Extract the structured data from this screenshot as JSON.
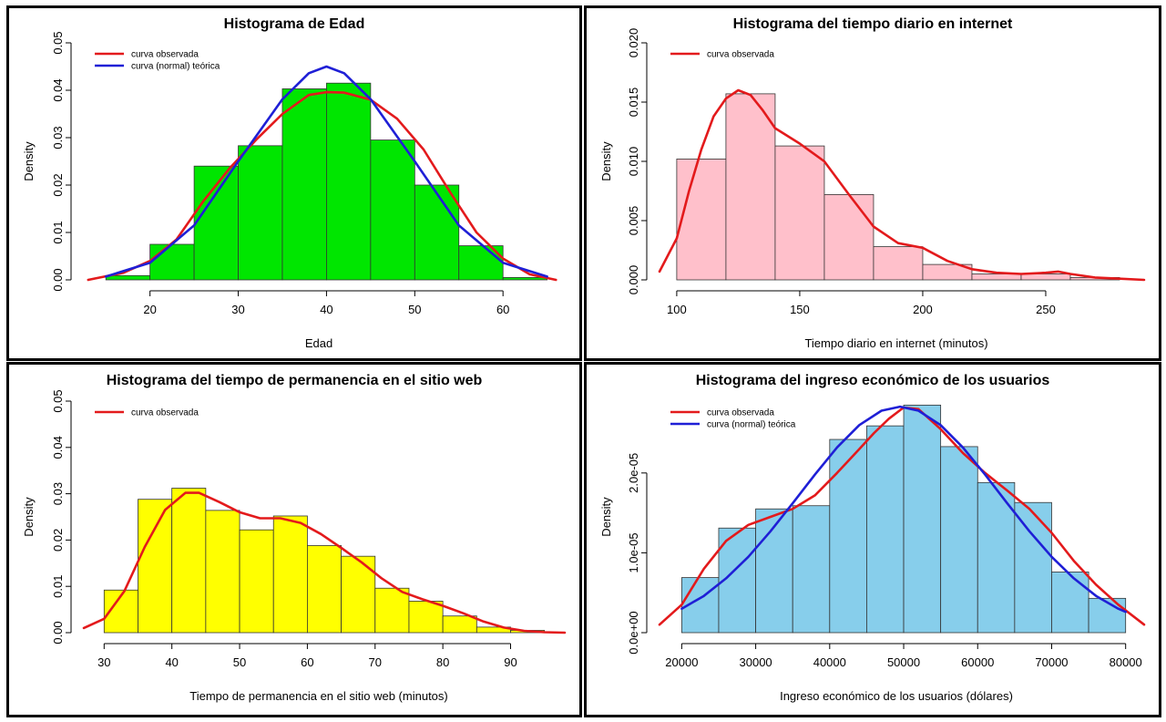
{
  "chart_data": [
    {
      "type": "bar",
      "title": "Histograma de Edad",
      "xlabel": "Edad",
      "ylabel": "Density",
      "bar_color": "#00e600",
      "bins": [
        [
          15,
          20
        ],
        [
          20,
          25
        ],
        [
          25,
          30
        ],
        [
          30,
          35
        ],
        [
          35,
          40
        ],
        [
          40,
          45
        ],
        [
          45,
          50
        ],
        [
          50,
          55
        ],
        [
          55,
          60
        ],
        [
          60,
          65
        ]
      ],
      "values": [
        0.0009,
        0.0075,
        0.024,
        0.0283,
        0.0403,
        0.0415,
        0.0295,
        0.02,
        0.0072,
        0.0005
      ],
      "xlim": [
        12.5,
        67
      ],
      "ylim": [
        0,
        0.05
      ],
      "xticks": [
        20,
        30,
        40,
        50,
        60
      ],
      "xtick_labels": [
        "20",
        "30",
        "40",
        "50",
        "60"
      ],
      "yticks": [
        0,
        0.01,
        0.02,
        0.03,
        0.04,
        0.05
      ],
      "ytick_labels": [
        "0.00",
        "0.01",
        "0.02",
        "0.03",
        "0.04",
        "0.05"
      ],
      "series": [
        {
          "name": "curva observada",
          "color": "#e31a1c",
          "x": [
            13,
            17,
            20,
            23,
            26,
            29,
            32,
            35,
            38,
            40,
            42,
            45,
            48,
            51,
            54,
            57,
            60,
            63,
            66
          ],
          "y": [
            0.0,
            0.0015,
            0.004,
            0.0085,
            0.0165,
            0.0235,
            0.0295,
            0.035,
            0.039,
            0.0396,
            0.0395,
            0.038,
            0.034,
            0.0275,
            0.0185,
            0.01,
            0.0045,
            0.0012,
            0.0
          ]
        },
        {
          "name": "curva (normal) teórica",
          "color": "#1f1fd6",
          "x": [
            15,
            20,
            25,
            30,
            35,
            38,
            40,
            42,
            45,
            50,
            55,
            60,
            65
          ],
          "y": [
            0.0007,
            0.0036,
            0.0115,
            0.025,
            0.0381,
            0.0436,
            0.045,
            0.0436,
            0.0381,
            0.025,
            0.0115,
            0.0036,
            0.0007
          ]
        }
      ]
    },
    {
      "type": "bar",
      "title": "Histograma del tiempo diario en internet",
      "xlabel": "Tiempo diario en internet (minutos)",
      "ylabel": "Density",
      "bar_color": "#ffc0cb",
      "bins": [
        [
          100,
          120
        ],
        [
          120,
          140
        ],
        [
          140,
          160
        ],
        [
          160,
          180
        ],
        [
          180,
          200
        ],
        [
          200,
          220
        ],
        [
          220,
          240
        ],
        [
          240,
          260
        ],
        [
          260,
          280
        ]
      ],
      "values": [
        0.0102,
        0.0157,
        0.0113,
        0.0072,
        0.0028,
        0.0013,
        0.0005,
        0.0005,
        0.0002
      ],
      "xlim": [
        93,
        290
      ],
      "ylim": [
        0,
        0.02
      ],
      "xticks": [
        100,
        150,
        200,
        250
      ],
      "xtick_labels": [
        "100",
        "150",
        "200",
        "250"
      ],
      "yticks": [
        0,
        0.005,
        0.01,
        0.015,
        0.02
      ],
      "ytick_labels": [
        "0.000",
        "0.005",
        "0.010",
        "0.015",
        "0.020"
      ],
      "series": [
        {
          "name": "curva observada",
          "color": "#e31a1c",
          "x": [
            93,
            100,
            105,
            110,
            115,
            120,
            125,
            130,
            135,
            140,
            150,
            160,
            170,
            180,
            190,
            200,
            210,
            220,
            230,
            240,
            250,
            255,
            260,
            270,
            280,
            290
          ],
          "y": [
            0.0007,
            0.0035,
            0.0075,
            0.011,
            0.0138,
            0.0153,
            0.016,
            0.0156,
            0.0143,
            0.0128,
            0.0115,
            0.01,
            0.0072,
            0.0045,
            0.0031,
            0.0027,
            0.0016,
            0.0009,
            0.0006,
            0.0005,
            0.0006,
            0.0007,
            0.0005,
            0.0002,
            0.0001,
            0.0
          ]
        }
      ]
    },
    {
      "type": "bar",
      "title": "Histograma del tiempo de permanencia en el sitio web",
      "xlabel": "Tiempo de permanencia en el sitio web (minutos)",
      "ylabel": "Density",
      "bar_color": "#ffff00",
      "bins": [
        [
          30,
          35
        ],
        [
          35,
          40
        ],
        [
          40,
          45
        ],
        [
          45,
          50
        ],
        [
          50,
          55
        ],
        [
          55,
          60
        ],
        [
          60,
          65
        ],
        [
          65,
          70
        ],
        [
          70,
          75
        ],
        [
          75,
          80
        ],
        [
          80,
          85
        ],
        [
          85,
          90
        ],
        [
          90,
          95
        ]
      ],
      "values": [
        0.0092,
        0.0288,
        0.0312,
        0.0264,
        0.0222,
        0.0252,
        0.0188,
        0.0165,
        0.0096,
        0.0068,
        0.0036,
        0.0012,
        0.0005
      ],
      "xlim": [
        27,
        98
      ],
      "ylim": [
        0,
        0.05
      ],
      "xticks": [
        30,
        40,
        50,
        60,
        70,
        80,
        90
      ],
      "xtick_labels": [
        "30",
        "40",
        "50",
        "60",
        "70",
        "80",
        "90"
      ],
      "yticks": [
        0,
        0.01,
        0.02,
        0.03,
        0.04,
        0.05
      ],
      "ytick_labels": [
        "0.00",
        "0.01",
        "0.02",
        "0.03",
        "0.04",
        "0.05"
      ],
      "series": [
        {
          "name": "curva observada",
          "color": "#e31a1c",
          "x": [
            27,
            30,
            33,
            36,
            39,
            42,
            44,
            47,
            50,
            53,
            56,
            59,
            62,
            65,
            68,
            71,
            74,
            77,
            80,
            83,
            86,
            89,
            92,
            95,
            98
          ],
          "y": [
            0.001,
            0.003,
            0.009,
            0.0185,
            0.0265,
            0.0302,
            0.0302,
            0.0282,
            0.026,
            0.0247,
            0.0247,
            0.0237,
            0.0213,
            0.0183,
            0.0152,
            0.0117,
            0.0088,
            0.0072,
            0.0058,
            0.0042,
            0.0024,
            0.0011,
            0.0004,
            0.0001,
            0.0
          ]
        }
      ]
    },
    {
      "type": "bar",
      "title": "Histograma del ingreso económico de los usuarios",
      "xlabel": "Ingreso económico de los usuarios (dólares)",
      "ylabel": "Density",
      "bar_color": "#87ceeb",
      "bins": [
        [
          20000,
          25000
        ],
        [
          25000,
          30000
        ],
        [
          30000,
          35000
        ],
        [
          35000,
          40000
        ],
        [
          40000,
          45000
        ],
        [
          45000,
          50000
        ],
        [
          50000,
          55000
        ],
        [
          55000,
          60000
        ],
        [
          60000,
          65000
        ],
        [
          65000,
          70000
        ],
        [
          70000,
          75000
        ],
        [
          75000,
          80000
        ]
      ],
      "values": [
        6.9e-06,
        1.31e-05,
        1.55e-05,
        1.59e-05,
        2.42e-05,
        2.59e-05,
        2.85e-05,
        2.33e-05,
        1.88e-05,
        1.63e-05,
        7.6e-06,
        4.3e-06
      ],
      "xlim": [
        17000,
        82500
      ],
      "ylim": [
        0,
        2.9e-05
      ],
      "xticks": [
        20000,
        30000,
        40000,
        50000,
        60000,
        70000,
        80000
      ],
      "xtick_labels": [
        "20000",
        "30000",
        "40000",
        "50000",
        "60000",
        "70000",
        "80000"
      ],
      "yticks": [
        0,
        1e-05,
        2e-05
      ],
      "ytick_labels": [
        "0.0e+00",
        "1.0e-05",
        "2.0e-05"
      ],
      "series": [
        {
          "name": "curva observada",
          "color": "#e31a1c",
          "x": [
            17000,
            20000,
            23000,
            26000,
            29000,
            32000,
            35000,
            38000,
            41000,
            44000,
            46000,
            48000,
            50000,
            52000,
            55000,
            58000,
            61000,
            64000,
            67000,
            70000,
            73000,
            76000,
            79000,
            82500
          ],
          "y": [
            1e-06,
            3.5e-06,
            8e-06,
            1.15e-05,
            1.35e-05,
            1.45e-05,
            1.55e-05,
            1.72e-05,
            2e-05,
            2.3e-05,
            2.5e-05,
            2.68e-05,
            2.82e-05,
            2.8e-05,
            2.55e-05,
            2.25e-05,
            2e-05,
            1.78e-05,
            1.55e-05,
            1.25e-05,
            9e-06,
            6e-06,
            3.5e-06,
            1e-06
          ]
        },
        {
          "name": "curva (normal) teórica",
          "color": "#1f1fd6",
          "x": [
            20000,
            23000,
            26000,
            29000,
            32000,
            35000,
            38000,
            41000,
            44000,
            47000,
            49500,
            52000,
            55000,
            58000,
            61000,
            64000,
            67000,
            70000,
            73000,
            76000,
            79000,
            80000
          ],
          "y": [
            3e-06,
            4.6e-06,
            6.8e-06,
            9.5e-06,
            1.27e-05,
            1.62e-05,
            1.98e-05,
            2.32e-05,
            2.6e-05,
            2.78e-05,
            2.83e-05,
            2.78e-05,
            2.6e-05,
            2.32e-05,
            1.98e-05,
            1.62e-05,
            1.27e-05,
            9.5e-06,
            6.8e-06,
            4.6e-06,
            3e-06,
            2.6e-06
          ]
        }
      ]
    }
  ]
}
